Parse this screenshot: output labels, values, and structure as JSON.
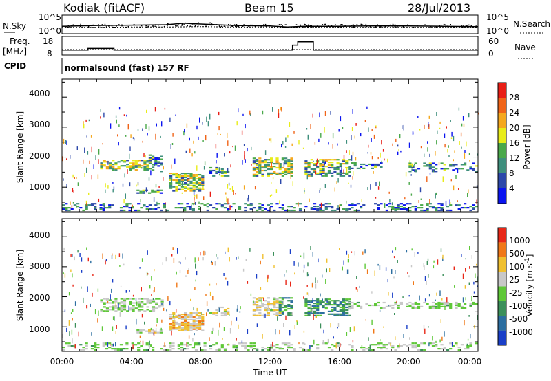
{
  "header": {
    "station": "Kodiak (fitACF)",
    "beam": "Beam 15",
    "date": "28/Jul/2013"
  },
  "strip_noise": {
    "left_label": "N.Sky",
    "right_label": "N.Search",
    "left_ticks": [
      "10^5",
      "10^0"
    ],
    "right_ticks": [
      "10^5",
      "10^0"
    ]
  },
  "strip_freq": {
    "label_line1": "Freq.",
    "label_line2": "[MHz]",
    "right_label": "Nave",
    "left_ticks": [
      "18",
      "8"
    ],
    "right_ticks": [
      "60",
      "0"
    ]
  },
  "strip_cpid": {
    "label": "CPID",
    "text": "normalsound (fast) 157 RF"
  },
  "panel_power": {
    "ylabel": "Slant Range [km]",
    "yticks": [
      "4000",
      "3000",
      "2000",
      "1000"
    ],
    "colorbar_label": "Power [dB]",
    "colorbar_ticks": [
      "28",
      "24",
      "20",
      "16",
      "12",
      "8",
      "4"
    ],
    "colors": [
      "#0a14f0",
      "#2c48aa",
      "#3f8f7d",
      "#4aa84a",
      "#e8ec1a",
      "#f5a81e",
      "#f06418",
      "#e81e16"
    ]
  },
  "panel_velocity": {
    "ylabel": "Slant Range [km]",
    "yticks": [
      "4000",
      "3000",
      "2000",
      "1000"
    ],
    "colorbar_label": "Velocity [m s^-1]",
    "colorbar_ticks": [
      "1000",
      "500",
      "100",
      "25",
      "-25",
      "-100",
      "-500",
      "-1000"
    ],
    "colors": [
      "#1a3fc8",
      "#2c6ea0",
      "#3b8f5a",
      "#5fc838",
      "#c8c8c8",
      "#f0c030",
      "#f07818",
      "#e82818"
    ]
  },
  "xaxis": {
    "label": "Time UT",
    "ticks": [
      "00:00",
      "04:00",
      "08:00",
      "12:00",
      "16:00",
      "20:00",
      "00:00"
    ]
  },
  "chart_data": [
    {
      "type": "line",
      "title": "",
      "series": [
        {
          "name": "N.Sky",
          "x": [
            0,
            2,
            4,
            6,
            7,
            8,
            10,
            12,
            13,
            14,
            16,
            18,
            20,
            22,
            24
          ],
          "y": [
            2.0,
            2.2,
            2.3,
            2.4,
            2.8,
            2.6,
            2.2,
            2.1,
            1.8,
            2.0,
            2.0,
            2.1,
            2.1,
            2.0,
            1.9
          ]
        },
        {
          "name": "N.Search",
          "x": [
            0,
            2,
            4,
            6,
            8,
            10,
            12,
            14,
            16,
            18,
            20,
            22,
            24
          ],
          "y": [
            1.7,
            1.7,
            1.8,
            1.8,
            1.9,
            1.8,
            1.8,
            1.7,
            1.7,
            1.7,
            1.7,
            1.7,
            1.7
          ]
        }
      ]
    },
    {
      "type": "line",
      "title": "",
      "series": [
        {
          "name": "Freq.",
          "x": [
            0,
            1,
            1.5,
            2.5,
            3,
            4,
            6,
            8,
            10,
            13.3,
            13.6,
            14,
            14.5,
            16,
            18,
            20,
            22,
            24
          ],
          "y": [
            11,
            11,
            12,
            12,
            11,
            11,
            11,
            11,
            11,
            14,
            16,
            16,
            11,
            11,
            11,
            11,
            11,
            11
          ]
        },
        {
          "name": "Nave",
          "x": [
            0,
            24
          ],
          "y": [
            20,
            20
          ]
        }
      ]
    },
    {
      "type": "heatmap",
      "title": "",
      "xlabel": "Time UT",
      "ylabel": "Slant Range [km]",
      "xlim": [
        0,
        24
      ],
      "ylim": [
        180,
        4600
      ],
      "colorbar": "Power [dB]",
      "crange": [
        0,
        30
      ],
      "clusters": [
        {
          "x0": 2.2,
          "x1": 5.0,
          "y0": 1550,
          "y1": 1900,
          "val": 14,
          "density": 0.55
        },
        {
          "x0": 5.0,
          "x1": 5.8,
          "y0": 1500,
          "y1": 2050,
          "val": 10,
          "density": 0.4
        },
        {
          "x0": 4.3,
          "x1": 5.7,
          "y0": 780,
          "y1": 900,
          "val": 10,
          "density": 0.55
        },
        {
          "x0": 6.2,
          "x1": 8.2,
          "y0": 850,
          "y1": 1450,
          "val": 14,
          "density": 0.65
        },
        {
          "x0": 8.5,
          "x1": 9.5,
          "y0": 1350,
          "y1": 1650,
          "val": 9,
          "density": 0.35
        },
        {
          "x0": 11.0,
          "x1": 13.3,
          "y0": 1350,
          "y1": 1950,
          "val": 14,
          "density": 0.6
        },
        {
          "x0": 14.0,
          "x1": 16.6,
          "y0": 1350,
          "y1": 1900,
          "val": 13,
          "density": 0.55
        },
        {
          "x0": 16.5,
          "x1": 18.5,
          "y0": 1600,
          "y1": 1800,
          "val": 8,
          "density": 0.35
        },
        {
          "x0": 20.0,
          "x1": 24.0,
          "y0": 1500,
          "y1": 1800,
          "val": 9,
          "density": 0.35
        },
        {
          "x0": 0.0,
          "x1": 24.0,
          "y0": 200,
          "y1": 450,
          "val": 7,
          "density": 0.3
        }
      ]
    },
    {
      "type": "heatmap",
      "title": "",
      "xlabel": "Time UT",
      "ylabel": "Slant Range [km]",
      "xlim": [
        0,
        24
      ],
      "ylim": [
        180,
        4600
      ],
      "colorbar": "Velocity [m s^-1]",
      "crange": [
        -1000,
        1000
      ],
      "clusters": [
        {
          "x0": 2.2,
          "x1": 5.8,
          "y0": 1500,
          "y1": 1950,
          "val": 0,
          "density": 0.55
        },
        {
          "x0": 4.3,
          "x1": 5.7,
          "y0": 780,
          "y1": 900,
          "val": 150,
          "density": 0.55
        },
        {
          "x0": 6.2,
          "x1": 8.2,
          "y0": 850,
          "y1": 1450,
          "val": 300,
          "density": 0.65
        },
        {
          "x0": 8.5,
          "x1": 9.5,
          "y0": 1350,
          "y1": 1650,
          "val": 200,
          "density": 0.35
        },
        {
          "x0": 11.0,
          "x1": 12.5,
          "y0": 1350,
          "y1": 1950,
          "val": 200,
          "density": 0.55
        },
        {
          "x0": 12.5,
          "x1": 13.3,
          "y0": 1350,
          "y1": 1950,
          "val": -300,
          "density": 0.55
        },
        {
          "x0": 14.0,
          "x1": 16.6,
          "y0": 1350,
          "y1": 1900,
          "val": -400,
          "density": 0.55
        },
        {
          "x0": 16.5,
          "x1": 24.0,
          "y0": 1600,
          "y1": 1800,
          "val": -30,
          "density": 0.35
        },
        {
          "x0": 0.0,
          "x1": 24.0,
          "y0": 200,
          "y1": 450,
          "val": -40,
          "density": 0.3
        }
      ]
    }
  ]
}
